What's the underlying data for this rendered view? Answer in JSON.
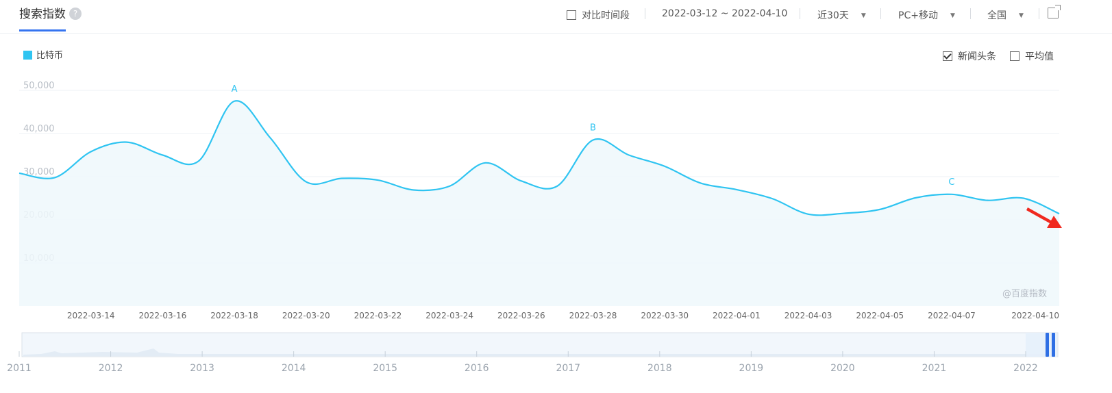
{
  "header": {
    "title": "搜索指数",
    "help_icon": "?",
    "compare_label": "对比时间段",
    "date_range": "2022-03-12 ~ 2022-04-10",
    "period_select": "近30天",
    "device_select": "PC+移动",
    "region_select": "全国"
  },
  "legend": {
    "label": "比特币",
    "color": "#2fc4f1"
  },
  "toggles": {
    "news_label": "新闻头条",
    "news_checked": true,
    "average_label": "平均值",
    "average_checked": false
  },
  "watermark": "@百度指数",
  "chart_data": {
    "type": "area",
    "series": [
      {
        "name": "比特币",
        "x": [
          "2022-03-12",
          "2022-03-13",
          "2022-03-14",
          "2022-03-15",
          "2022-03-16",
          "2022-03-17",
          "2022-03-18",
          "2022-03-19",
          "2022-03-20",
          "2022-03-21",
          "2022-03-22",
          "2022-03-23",
          "2022-03-24",
          "2022-03-25",
          "2022-03-26",
          "2022-03-27",
          "2022-03-28",
          "2022-03-29",
          "2022-03-30",
          "2022-03-31",
          "2022-04-01",
          "2022-04-02",
          "2022-04-03",
          "2022-04-04",
          "2022-04-05",
          "2022-04-06",
          "2022-04-07",
          "2022-04-08",
          "2022-04-09",
          "2022-04-10"
        ],
        "values": [
          30800,
          29800,
          35800,
          38000,
          35000,
          33600,
          47500,
          39000,
          28800,
          29600,
          29200,
          26900,
          27800,
          33200,
          29000,
          27800,
          38500,
          35000,
          32400,
          28500,
          27000,
          24900,
          21300,
          21500,
          22400,
          25100,
          25900,
          24500,
          25000,
          21400
        ]
      }
    ],
    "ylim": [
      0,
      50000
    ],
    "yticks": [
      "10,000",
      "20,000",
      "30,000",
      "40,000",
      "50,000"
    ],
    "xticks": [
      "2022-03-14",
      "2022-03-16",
      "2022-03-18",
      "2022-03-20",
      "2022-03-22",
      "2022-03-24",
      "2022-03-26",
      "2022-03-28",
      "2022-03-30",
      "2022-04-01",
      "2022-04-03",
      "2022-04-05",
      "2022-04-07",
      "2022-04-10"
    ],
    "annotations": [
      {
        "label": "A",
        "x": "2022-03-18"
      },
      {
        "label": "B",
        "x": "2022-03-28"
      },
      {
        "label": "C",
        "x": "2022-04-07"
      }
    ],
    "grid": true,
    "overview_years": [
      "2011",
      "2012",
      "2013",
      "2014",
      "2015",
      "2016",
      "2017",
      "2018",
      "2019",
      "2020",
      "2021",
      "2022"
    ]
  }
}
